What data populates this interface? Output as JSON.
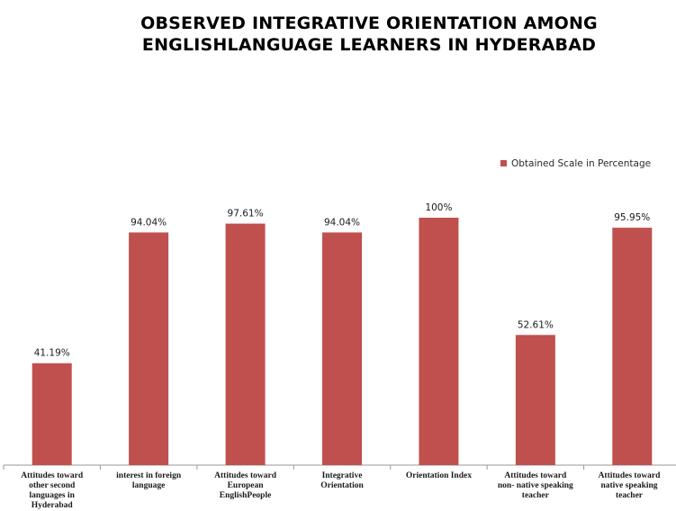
{
  "chart_data": {
    "type": "bar",
    "title_lines": [
      "OBSERVED INTEGRATIVE ORIENTATION AMONG",
      "ENGLISHLANGUAGE LEARNERS IN HYDERABAD"
    ],
    "categories": [
      [
        "Attitudes toward",
        "other second",
        "languages in",
        "Hyderabad"
      ],
      [
        "interest in foreign",
        "language"
      ],
      [
        "Attitudes toward",
        "European",
        "EnglishPeople"
      ],
      [
        "Integrative",
        "Orientation"
      ],
      [
        "Orientation Index"
      ],
      [
        "Attitudes toward",
        "non- native speaking",
        "teacher"
      ],
      [
        "Attitudes toward",
        "native speaking",
        "teacher"
      ]
    ],
    "series": [
      {
        "name": "Obtained Scale in Percentage",
        "values": [
          41.19,
          94.04,
          97.61,
          94.04,
          100,
          52.61,
          95.95
        ],
        "labels": [
          "41.19%",
          "94.04%",
          "97.61%",
          "94.04%",
          "100%",
          "52.61%",
          "95.95%"
        ],
        "color": "#c0504d"
      }
    ],
    "ylim": [
      0,
      100
    ],
    "grid": false,
    "legend_position": "top-right"
  }
}
